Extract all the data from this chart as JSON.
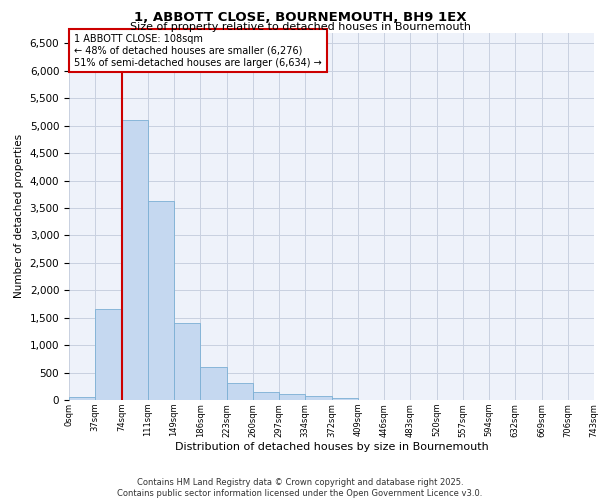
{
  "title_line1": "1, ABBOTT CLOSE, BOURNEMOUTH, BH9 1EX",
  "title_line2": "Size of property relative to detached houses in Bournemouth",
  "xlabel": "Distribution of detached houses by size in Bournemouth",
  "ylabel": "Number of detached properties",
  "bar_color": "#c5d8f0",
  "bar_edge_color": "#7bafd4",
  "vline_color": "#cc0000",
  "annotation_text": "1 ABBOTT CLOSE: 108sqm\n← 48% of detached houses are smaller (6,276)\n51% of semi-detached houses are larger (6,634) →",
  "annotation_box_color": "#ffffff",
  "annotation_box_edge": "#cc0000",
  "bins": [
    "0sqm",
    "37sqm",
    "74sqm",
    "111sqm",
    "149sqm",
    "186sqm",
    "223sqm",
    "260sqm",
    "297sqm",
    "334sqm",
    "372sqm",
    "409sqm",
    "446sqm",
    "483sqm",
    "520sqm",
    "557sqm",
    "594sqm",
    "632sqm",
    "669sqm",
    "706sqm",
    "743sqm"
  ],
  "values": [
    60,
    1650,
    5100,
    3620,
    1400,
    610,
    310,
    145,
    110,
    75,
    45,
    0,
    0,
    0,
    0,
    0,
    0,
    0,
    0,
    0
  ],
  "ylim": [
    0,
    6700
  ],
  "yticks": [
    0,
    500,
    1000,
    1500,
    2000,
    2500,
    3000,
    3500,
    4000,
    4500,
    5000,
    5500,
    6000,
    6500
  ],
  "footer": "Contains HM Land Registry data © Crown copyright and database right 2025.\nContains public sector information licensed under the Open Government Licence v3.0.",
  "bg_color": "#eef2fa",
  "grid_color": "#c8d0e0"
}
